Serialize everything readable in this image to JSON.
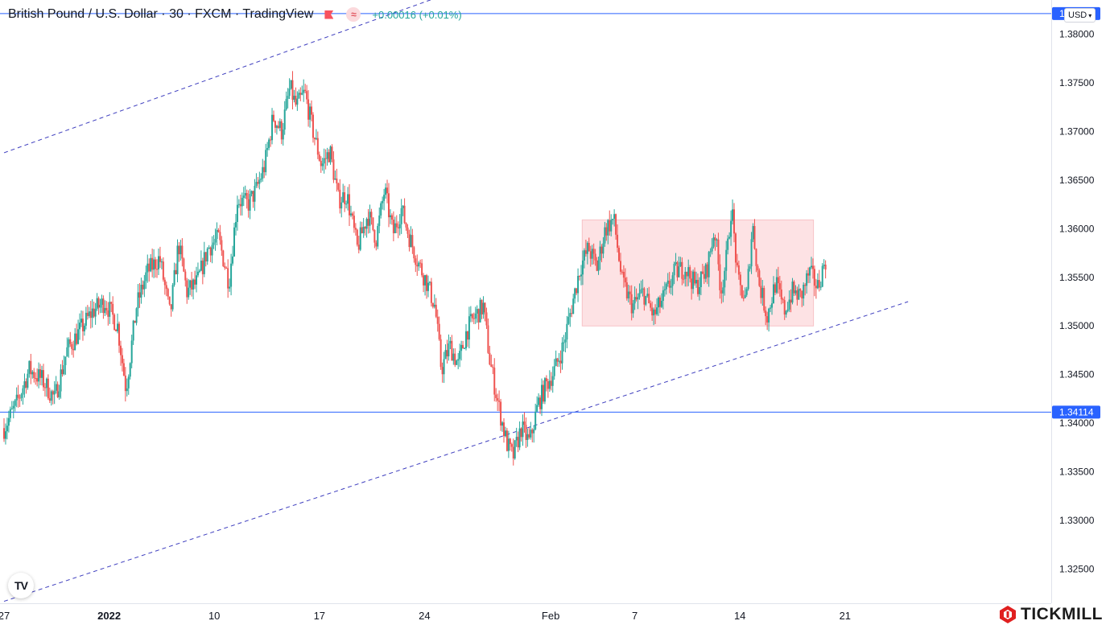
{
  "header": {
    "title": "British Pound / U.S. Dollar · 30 · FXCM · TradingView",
    "change": "+0.00016 (+0.01%)",
    "badge_icon": "≈"
  },
  "currency_selector": {
    "value": "USD"
  },
  "logo_tv": "TV",
  "brand": {
    "name": "TICKMILL"
  },
  "colors": {
    "up": "#26a69a",
    "down": "#ef5350",
    "trendline": "#3f3fbf",
    "hline": "#2962ff",
    "zone": "#fde2e4",
    "axis_text": "#131722"
  },
  "chart_data": {
    "type": "candlestick",
    "title": "British Pound / U.S. Dollar",
    "interval": "30",
    "exchange": "FXCM",
    "ylim": [
      1.3215,
      1.3835
    ],
    "y_ticks": [
      "1.32500",
      "1.33000",
      "1.33500",
      "1.34000",
      "1.34500",
      "1.35000",
      "1.35500",
      "1.36000",
      "1.36500",
      "1.37000",
      "1.37500",
      "1.38000"
    ],
    "x_ticks": [
      {
        "label": "27",
        "index": 0
      },
      {
        "label": "2022",
        "index": 5
      },
      {
        "label": "10",
        "index": 10
      },
      {
        "label": "17",
        "index": 15
      },
      {
        "label": "24",
        "index": 20
      },
      {
        "label": "Feb",
        "index": 26
      },
      {
        "label": "7",
        "index": 30
      },
      {
        "label": "14",
        "index": 35
      },
      {
        "label": "21",
        "index": 40
      }
    ],
    "x_index_range": [
      0,
      50
    ],
    "price_path": [
      [
        0.0,
        1.3395
      ],
      [
        0.6,
        1.342
      ],
      [
        1.2,
        1.3455
      ],
      [
        1.8,
        1.3445
      ],
      [
        2.4,
        1.3425
      ],
      [
        3.0,
        1.3475
      ],
      [
        3.6,
        1.3495
      ],
      [
        4.2,
        1.3515
      ],
      [
        4.8,
        1.3525
      ],
      [
        5.4,
        1.35
      ],
      [
        5.8,
        1.3435
      ],
      [
        6.3,
        1.352
      ],
      [
        6.8,
        1.3555
      ],
      [
        7.4,
        1.357
      ],
      [
        7.9,
        1.351
      ],
      [
        8.3,
        1.3585
      ],
      [
        8.7,
        1.3535
      ],
      [
        9.2,
        1.3545
      ],
      [
        9.7,
        1.358
      ],
      [
        10.2,
        1.359
      ],
      [
        10.7,
        1.3545
      ],
      [
        11.1,
        1.363
      ],
      [
        11.6,
        1.3625
      ],
      [
        12.0,
        1.364
      ],
      [
        12.4,
        1.3665
      ],
      [
        12.8,
        1.3715
      ],
      [
        13.2,
        1.37
      ],
      [
        13.6,
        1.3745
      ],
      [
        13.9,
        1.3725
      ],
      [
        14.3,
        1.374
      ],
      [
        14.7,
        1.37
      ],
      [
        15.1,
        1.3665
      ],
      [
        15.5,
        1.368
      ],
      [
        15.9,
        1.363
      ],
      [
        16.3,
        1.3635
      ],
      [
        16.8,
        1.358
      ],
      [
        17.3,
        1.3615
      ],
      [
        17.7,
        1.359
      ],
      [
        18.1,
        1.364
      ],
      [
        18.5,
        1.3595
      ],
      [
        18.9,
        1.362
      ],
      [
        19.3,
        1.359
      ],
      [
        19.7,
        1.3565
      ],
      [
        20.1,
        1.3545
      ],
      [
        20.5,
        1.352
      ],
      [
        20.8,
        1.3455
      ],
      [
        21.2,
        1.348
      ],
      [
        21.6,
        1.346
      ],
      [
        22.0,
        1.3495
      ],
      [
        22.4,
        1.351
      ],
      [
        22.8,
        1.352
      ],
      [
        23.1,
        1.3465
      ],
      [
        23.5,
        1.342
      ],
      [
        23.9,
        1.338
      ],
      [
        24.2,
        1.3365
      ],
      [
        24.6,
        1.3395
      ],
      [
        25.0,
        1.338
      ],
      [
        25.4,
        1.342
      ],
      [
        25.8,
        1.344
      ],
      [
        26.2,
        1.3455
      ],
      [
        26.6,
        1.348
      ],
      [
        27.0,
        1.352
      ],
      [
        27.4,
        1.356
      ],
      [
        27.8,
        1.358
      ],
      [
        28.2,
        1.356
      ],
      [
        28.6,
        1.36
      ],
      [
        29.0,
        1.361
      ],
      [
        29.4,
        1.3545
      ],
      [
        29.9,
        1.352
      ],
      [
        30.4,
        1.3535
      ],
      [
        30.9,
        1.351
      ],
      [
        31.4,
        1.353
      ],
      [
        31.9,
        1.3555
      ],
      [
        32.4,
        1.356
      ],
      [
        32.9,
        1.354
      ],
      [
        33.4,
        1.3555
      ],
      [
        33.8,
        1.36
      ],
      [
        34.1,
        1.3535
      ],
      [
        34.4,
        1.3575
      ],
      [
        34.6,
        1.3625
      ],
      [
        34.9,
        1.3545
      ],
      [
        35.3,
        1.3525
      ],
      [
        35.6,
        1.3605
      ],
      [
        35.9,
        1.3545
      ],
      [
        36.3,
        1.351
      ],
      [
        36.7,
        1.3545
      ],
      [
        37.1,
        1.3515
      ],
      [
        37.5,
        1.3535
      ],
      [
        37.9,
        1.353
      ],
      [
        38.3,
        1.3555
      ],
      [
        38.7,
        1.354
      ],
      [
        39.1,
        1.357
      ]
    ],
    "annotations": {
      "horizontal_lines": [
        {
          "price": 1.3821,
          "label": "1.38210"
        },
        {
          "price": 1.34114,
          "label": "1.34114"
        }
      ],
      "trend_channel": {
        "upper": [
          [
            0,
            1.3678
          ],
          [
            23.5,
            1.386
          ]
        ],
        "lower": [
          [
            0,
            1.3217
          ],
          [
            43.0,
            1.3525
          ]
        ]
      },
      "range_box": {
        "x_from": 27.5,
        "x_to": 38.5,
        "price_low": 1.35,
        "price_high": 1.3609
      }
    }
  }
}
